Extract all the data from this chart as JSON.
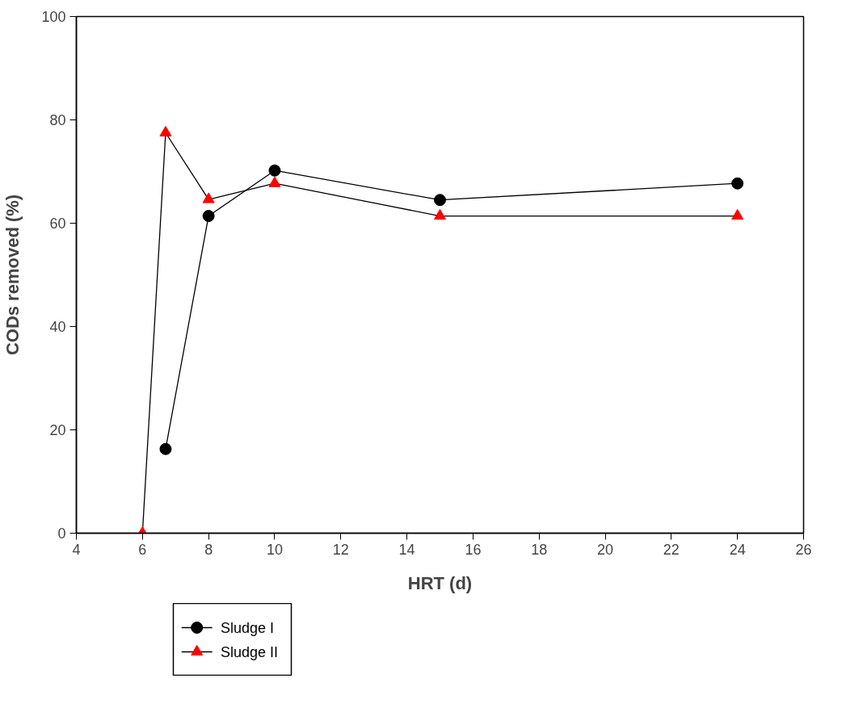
{
  "chart_data": {
    "type": "line",
    "xlabel": "HRT (d)",
    "ylabel": "CODs removed (%)",
    "xlim": [
      4,
      26
    ],
    "xticks": [
      4,
      6,
      8,
      10,
      12,
      14,
      16,
      18,
      20,
      22,
      24,
      26
    ],
    "ylim": [
      0,
      100
    ],
    "yticks": [
      0,
      20,
      40,
      60,
      80,
      100
    ],
    "grid": false,
    "legend": "bottom left",
    "series": [
      {
        "name": "Sludge I",
        "color": "#000000",
        "marker": "circle",
        "x": [
          6.7,
          8,
          10,
          15,
          24
        ],
        "values": [
          16.3,
          61.4,
          70.2,
          64.5,
          67.7
        ]
      },
      {
        "name": "Sludge II",
        "color": "#ff0000",
        "marker": "triangle",
        "x": [
          6,
          6.7,
          8,
          10,
          15,
          24
        ],
        "values": [
          0,
          77.5,
          64.6,
          67.7,
          61.4,
          61.4
        ]
      }
    ]
  }
}
